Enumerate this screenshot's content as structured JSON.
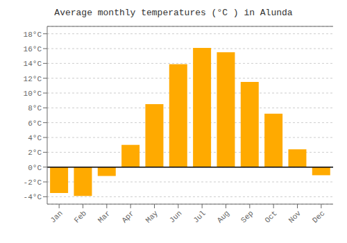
{
  "chart_data": {
    "type": "bar",
    "title": "Average monthly temperatures (°C ) in Alunda",
    "categories": [
      "Jan",
      "Feb",
      "Mar",
      "Apr",
      "May",
      "Jun",
      "Jul",
      "Aug",
      "Sep",
      "Oct",
      "Nov",
      "Dec"
    ],
    "values": [
      -3.5,
      -3.9,
      -1.2,
      3.0,
      8.5,
      13.9,
      16.1,
      15.5,
      11.5,
      7.2,
      2.4,
      -1.1
    ],
    "color": "#FFAA00",
    "ylim": [
      -5,
      19
    ],
    "yticks": [
      {
        "value": -4,
        "label": "-4°C"
      },
      {
        "value": -2,
        "label": "-2°C"
      },
      {
        "value": 0,
        "label": "0°C"
      },
      {
        "value": 2,
        "label": "2°C"
      },
      {
        "value": 4,
        "label": "4°C"
      },
      {
        "value": 6,
        "label": "6°C"
      },
      {
        "value": 8,
        "label": "8°C"
      },
      {
        "value": 10,
        "label": "10°C"
      },
      {
        "value": 12,
        "label": "12°C"
      },
      {
        "value": 14,
        "label": "14°C"
      },
      {
        "value": 16,
        "label": "16°C"
      },
      {
        "value": 18,
        "label": "18°C"
      }
    ],
    "grid": true
  }
}
